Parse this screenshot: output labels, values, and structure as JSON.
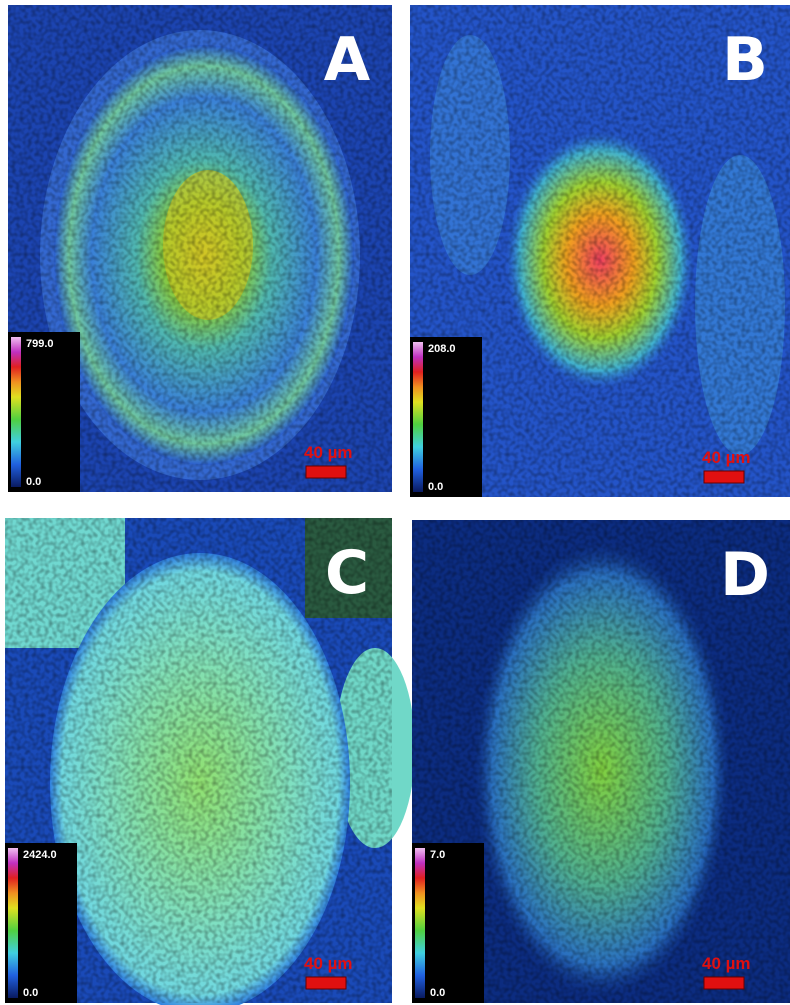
{
  "panels": [
    {
      "label": "A",
      "max": "799.0",
      "min": "0.0",
      "scale": "40 µm"
    },
    {
      "label": "B",
      "max": "208.0",
      "min": "0.0",
      "scale": "40 µm"
    },
    {
      "label": "C",
      "max": "2424.0",
      "min": "0.0",
      "scale": "40 µm"
    },
    {
      "label": "D",
      "max": "7.0",
      "min": "0.0",
      "scale": "40 µm"
    }
  ]
}
